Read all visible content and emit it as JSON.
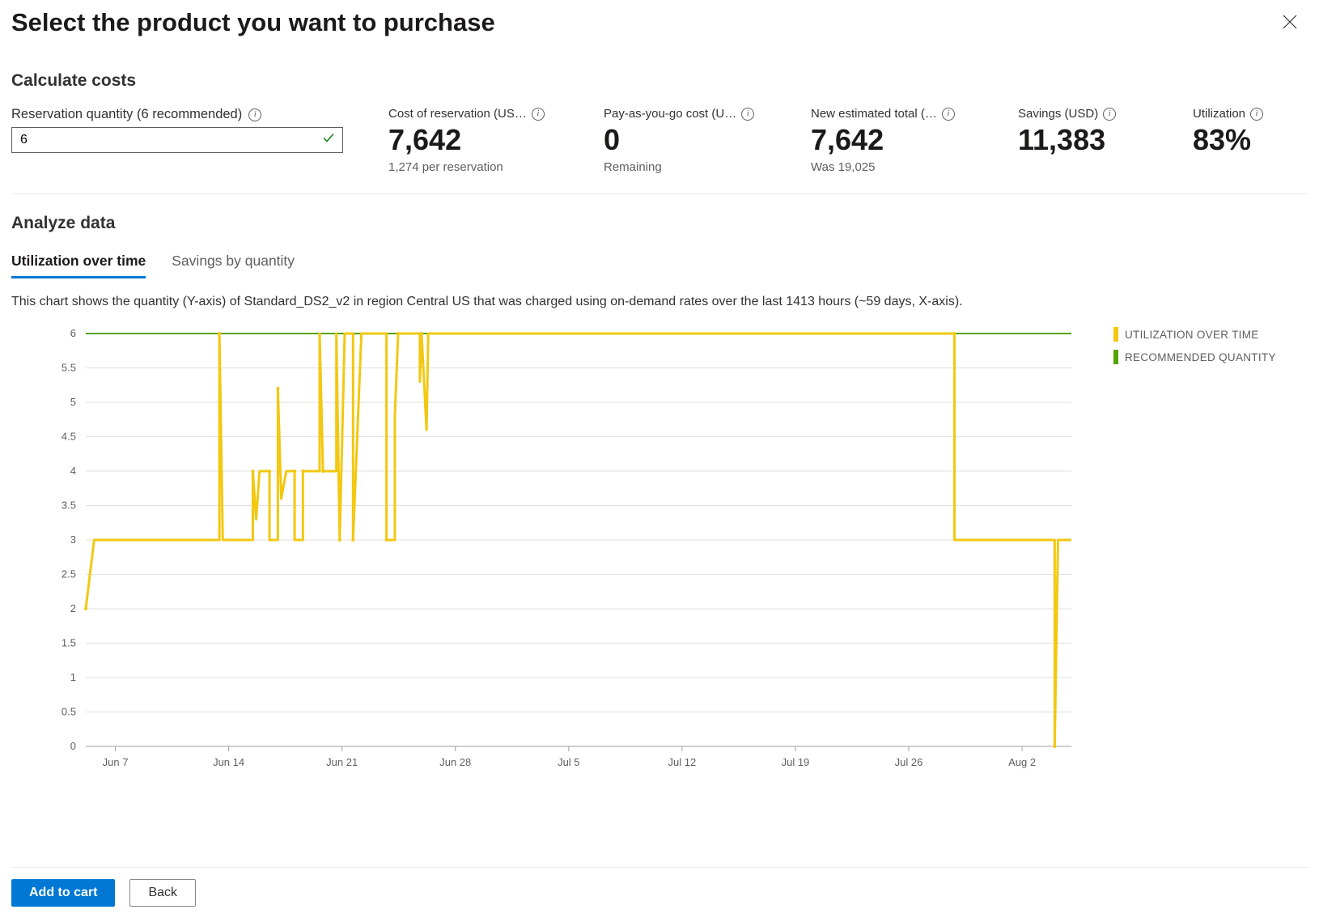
{
  "page": {
    "title": "Select the product you want to purchase"
  },
  "calculate": {
    "title": "Calculate costs",
    "quantity_label": "Reservation quantity (6 recommended)",
    "quantity_value": "6"
  },
  "metrics": {
    "cost_reservation": {
      "label": "Cost of reservation (US…",
      "value": "7,642",
      "sub": "1,274 per reservation"
    },
    "payg": {
      "label": "Pay-as-you-go cost (U…",
      "value": "0",
      "sub": "Remaining"
    },
    "new_total": {
      "label": "New estimated total (…",
      "value": "7,642",
      "sub": "Was 19,025"
    },
    "savings": {
      "label": "Savings (USD)",
      "value": "11,383",
      "sub": ""
    },
    "utilization": {
      "label": "Utilization",
      "value": "83%",
      "sub": ""
    }
  },
  "analyze": {
    "title": "Analyze data",
    "tabs": {
      "util": "Utilization over time",
      "savings": "Savings by quantity"
    },
    "description": "This chart shows the quantity (Y-axis) of Standard_DS2_v2 in region Central US that was charged using on-demand rates over the last 1413 hours (~59 days, X-axis).",
    "legend": {
      "util": "UTILIZATION OVER TIME",
      "recommended": "RECOMMENDED QUANTITY"
    }
  },
  "chart": {
    "type": "line-step",
    "ylim": [
      0,
      6
    ],
    "ytick_step": 0.5,
    "y_ticks": [
      0,
      0.5,
      1,
      1.5,
      2,
      2.5,
      3,
      3.5,
      4,
      4.5,
      5,
      5.5,
      6
    ],
    "x_labels": [
      "Jun 7",
      "Jun 14",
      "Jun 21",
      "Jun 28",
      "Jul 5",
      "Jul 12",
      "Jul 19",
      "Jul 26",
      "Aug 2"
    ],
    "x_range": [
      0,
      59
    ],
    "recommended_value": 6,
    "colors": {
      "utilization": "#f2c811",
      "recommended": "#57a300",
      "grid": "#e1dfdd",
      "axis": "#a19f9d",
      "background": "#ffffff",
      "label": "#605e5c"
    },
    "line_width": 3,
    "utilization_series": [
      [
        0,
        2
      ],
      [
        0.5,
        3
      ],
      [
        8,
        3
      ],
      [
        8,
        6
      ],
      [
        8.2,
        3
      ],
      [
        10,
        3
      ],
      [
        10,
        4
      ],
      [
        10.2,
        3.3
      ],
      [
        10.4,
        4
      ],
      [
        11,
        4
      ],
      [
        11,
        3
      ],
      [
        11.5,
        3
      ],
      [
        11.5,
        5.2
      ],
      [
        11.7,
        3.6
      ],
      [
        12,
        4
      ],
      [
        12.5,
        4
      ],
      [
        12.5,
        3
      ],
      [
        13,
        3
      ],
      [
        13,
        4
      ],
      [
        14,
        4
      ],
      [
        14,
        6
      ],
      [
        14.2,
        4
      ],
      [
        15,
        4
      ],
      [
        15,
        6
      ],
      [
        15.2,
        3
      ],
      [
        15.5,
        6
      ],
      [
        16,
        6
      ],
      [
        16,
        3
      ],
      [
        16.5,
        6
      ],
      [
        18,
        6
      ],
      [
        18,
        3
      ],
      [
        18.5,
        3
      ],
      [
        18.5,
        4.8
      ],
      [
        18.7,
        6
      ],
      [
        20,
        6
      ],
      [
        20,
        5.3
      ],
      [
        20.1,
        6
      ],
      [
        20.4,
        4.6
      ],
      [
        20.5,
        6
      ],
      [
        52,
        6
      ],
      [
        52,
        3
      ],
      [
        58,
        3
      ],
      [
        58,
        0
      ],
      [
        58.2,
        3
      ],
      [
        59,
        3
      ]
    ]
  },
  "footer": {
    "add_to_cart": "Add to cart",
    "back": "Back"
  }
}
